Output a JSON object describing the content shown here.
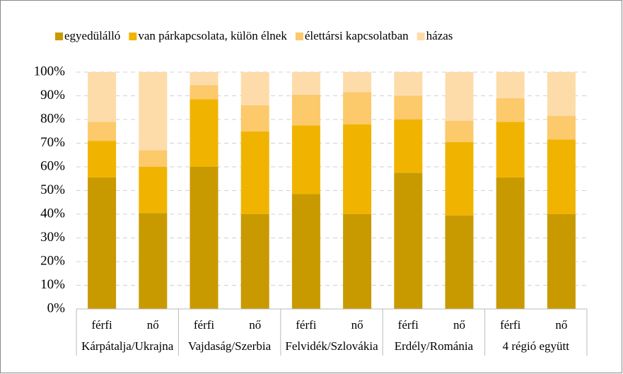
{
  "chart_data": {
    "type": "stacked_bar",
    "categories": [
      "férfi",
      "nő",
      "férfi",
      "nő",
      "férfi",
      "nő",
      "férfi",
      "nő",
      "férfi",
      "nő"
    ],
    "groups": [
      "Kárpátalja/Ukrajna",
      "Vajdaság/Szerbia",
      "Felvidék/Szlovákia",
      "Erdély/Románia",
      "4 régió együtt"
    ],
    "series": [
      {
        "name": "egyedülálló",
        "color": "#c89a00",
        "values": [
          55.5,
          40.5,
          60,
          40,
          48.5,
          40,
          57.5,
          39.5,
          55.5,
          40
        ]
      },
      {
        "name": "van párkapcsolata, külön élnek",
        "color": "#f0b400",
        "values": [
          15.5,
          19.5,
          28.5,
          35,
          29,
          38,
          22.5,
          31,
          23.5,
          31.5
        ]
      },
      {
        "name": "élettársi kapcsolatban",
        "color": "#fcc96b",
        "values": [
          8,
          7,
          6,
          11,
          13,
          13.5,
          10,
          9,
          10,
          10
        ]
      },
      {
        "name": "házas",
        "color": "#fddcaa",
        "values": [
          21,
          33,
          5.5,
          14,
          9.5,
          8.5,
          10,
          20.5,
          11,
          18.5
        ]
      }
    ],
    "ylim": [
      0,
      100
    ],
    "yticks": [
      {
        "value": 0,
        "label": "0%"
      },
      {
        "value": 10,
        "label": "10%"
      },
      {
        "value": 20,
        "label": "20%"
      },
      {
        "value": 30,
        "label": "30%"
      },
      {
        "value": 40,
        "label": "40%"
      },
      {
        "value": 50,
        "label": "50%"
      },
      {
        "value": 60,
        "label": "60%"
      },
      {
        "value": 70,
        "label": "70%"
      },
      {
        "value": 80,
        "label": "80%"
      },
      {
        "value": 90,
        "label": "90%"
      },
      {
        "value": 100,
        "label": "100%"
      }
    ],
    "grid": true,
    "legend": "top"
  }
}
